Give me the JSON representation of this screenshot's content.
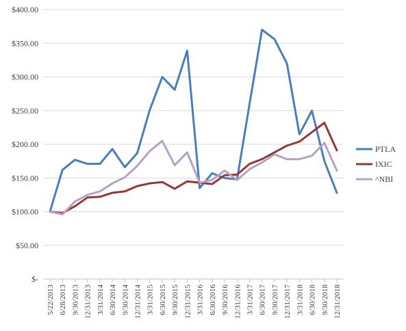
{
  "chart_data": {
    "type": "line",
    "title": "",
    "xlabel": "",
    "ylabel": "",
    "ylim": [
      0,
      400
    ],
    "y_ticks": [
      {
        "value": 0,
        "label": "$-"
      },
      {
        "value": 50,
        "label": "$50.00"
      },
      {
        "value": 100,
        "label": "$100.00"
      },
      {
        "value": 150,
        "label": "$150.00"
      },
      {
        "value": 200,
        "label": "$200.00"
      },
      {
        "value": 250,
        "label": "$250.00"
      },
      {
        "value": 300,
        "label": "$300.00"
      },
      {
        "value": 350,
        "label": "$350.00"
      },
      {
        "value": 400,
        "label": "$400.00"
      }
    ],
    "grid": "horizontal",
    "legend_position": "right",
    "categories": [
      "5/22/2013",
      "6/28/2013",
      "9/30/2013",
      "12/31/2013",
      "3/31/2014",
      "6/30/2014",
      "9/30/2014",
      "12/31/2014",
      "3/31/2015",
      "6/30/2015",
      "9/30/2015",
      "12/31/2015",
      "3/31/2016",
      "6/30/2016",
      "9/30/2016",
      "12/31/2016",
      "3/31/2017",
      "6/30/2017",
      "9/30/2017",
      "12/31/2017",
      "3/31/2018",
      "6/30/2018",
      "9/30/2018",
      "12/31/2018"
    ],
    "series": [
      {
        "name": "PTLA",
        "color": "#4a7ebb",
        "values": [
          100,
          162,
          177,
          171,
          171,
          193,
          166,
          187,
          251,
          300,
          281,
          339,
          135,
          157,
          150,
          148,
          260,
          370,
          356,
          320,
          215,
          250,
          175,
          128
        ]
      },
      {
        "name": "IXIC",
        "color": "#953735",
        "values": [
          100,
          98,
          108,
          121,
          122,
          128,
          130,
          138,
          142,
          144,
          134,
          145,
          143,
          141,
          154,
          155,
          171,
          178,
          188,
          198,
          204,
          218,
          232,
          191
        ]
      },
      {
        "name": "^NBI",
        "color": "#b3a2c7",
        "values": [
          100,
          96,
          115,
          125,
          130,
          142,
          151,
          168,
          190,
          205,
          169,
          188,
          143,
          147,
          161,
          147,
          163,
          173,
          185,
          178,
          178,
          183,
          202,
          161
        ]
      }
    ]
  }
}
